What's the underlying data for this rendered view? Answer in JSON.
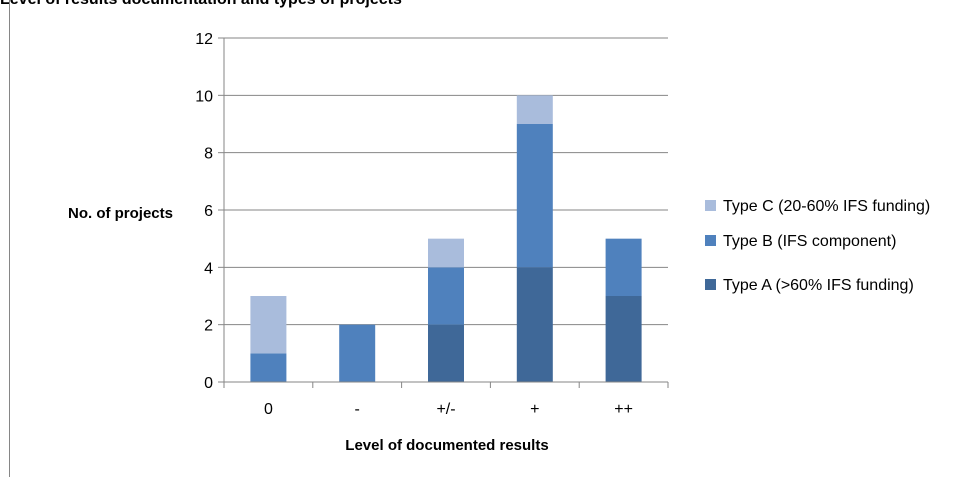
{
  "page": {
    "title": "Level of results documentation and types of projects"
  },
  "colors": {
    "type_a": "#3F6898",
    "type_b": "#4F81BD",
    "type_c": "#A9BCDC",
    "grid": "#868686",
    "axis": "#868686"
  },
  "chart_data": {
    "type": "bar",
    "stacked": true,
    "categories": [
      "0",
      "-",
      "+/-",
      "+",
      "++"
    ],
    "series": [
      {
        "name": "Type A (>60% IFS funding)",
        "values": [
          0,
          0,
          2,
          4,
          3
        ]
      },
      {
        "name": "Type B (IFS component)",
        "values": [
          1,
          2,
          2,
          5,
          2
        ]
      },
      {
        "name": "Type C (20-60% IFS funding)",
        "values": [
          2,
          0,
          1,
          1,
          0
        ]
      }
    ],
    "xlabel": "Level of documented results",
    "ylabel": "No. of projects",
    "ylim": [
      0,
      12
    ],
    "yticks": [
      0,
      2,
      4,
      6,
      8,
      10,
      12
    ],
    "grid": true,
    "legend": "right"
  }
}
